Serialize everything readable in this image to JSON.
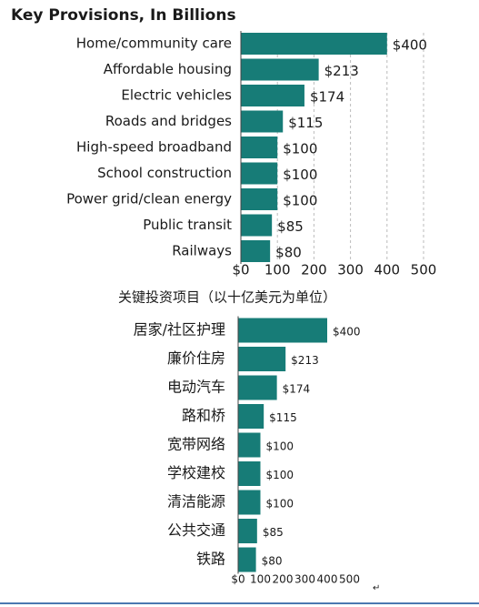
{
  "chart_data": [
    {
      "type": "bar",
      "orientation": "horizontal",
      "title": "Key Provisions, In Billions",
      "categories": [
        "Home/community care",
        "Affordable housing",
        "Electric vehicles",
        "Roads and bridges",
        "High-speed broadband",
        "School construction",
        "Power grid/clean energy",
        "Public transit",
        "Railways"
      ],
      "values": [
        400,
        213,
        174,
        115,
        100,
        100,
        100,
        85,
        80
      ],
      "value_labels": [
        "$400",
        "$213",
        "$174",
        "$115",
        "$100",
        "$100",
        "$100",
        "$85",
        "$80"
      ],
      "color": "#177c77",
      "xlim": [
        0,
        500
      ],
      "xticks": [
        {
          "value": 0,
          "label": "$0"
        },
        100,
        200,
        300,
        400,
        500
      ],
      "grid": true
    },
    {
      "type": "bar",
      "orientation": "horizontal",
      "title": "关键投资项目（以十亿美元为单位）",
      "categories": [
        "居家/社区护理",
        "廉价住房",
        "电动汽车",
        "路和桥",
        "宽带网络",
        "学校建校",
        "清洁能源",
        "公共交通",
        "铁路"
      ],
      "values": [
        400,
        213,
        174,
        115,
        100,
        100,
        100,
        85,
        80
      ],
      "value_labels": [
        "$400",
        "$213",
        "$174",
        "$115",
        "$100",
        "$100",
        "$100",
        "$85",
        "$80"
      ],
      "color": "#177c77",
      "xlim": [
        0,
        500
      ],
      "xticks": [
        {
          "value": 0,
          "label": "$0"
        },
        100,
        200,
        300,
        400,
        500
      ],
      "grid": false
    }
  ],
  "paragraph_mark": "↵"
}
